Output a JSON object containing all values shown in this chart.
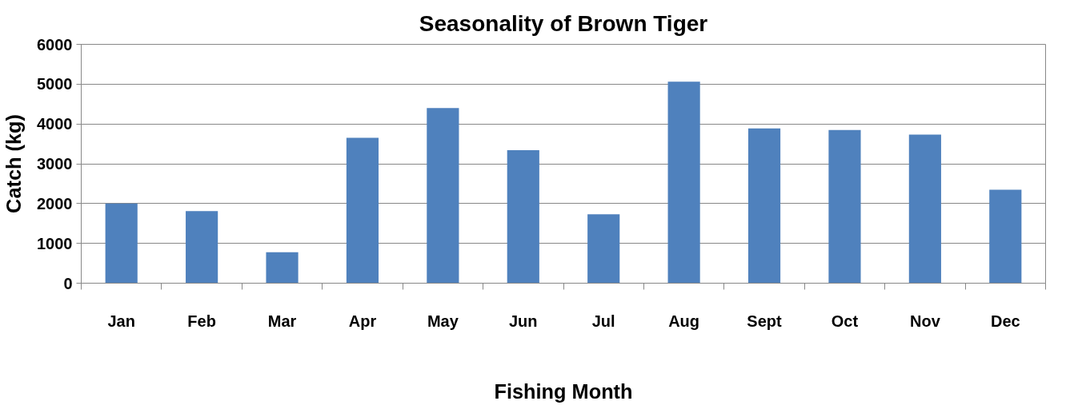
{
  "chart_data": {
    "type": "bar",
    "title": "Seasonality of Brown Tiger",
    "xlabel": "Fishing Month",
    "ylabel": "Catch (kg)",
    "categories": [
      "Jan",
      "Feb",
      "Mar",
      "Apr",
      "May",
      "Jun",
      "Jul",
      "Aug",
      "Sept",
      "Oct",
      "Nov",
      "Dec"
    ],
    "values": [
      2000,
      1810,
      780,
      3650,
      4400,
      3340,
      1730,
      5060,
      3890,
      3850,
      3730,
      2350
    ],
    "color": "#4f81bd",
    "ylim": [
      0,
      6000
    ],
    "yticks": [
      0,
      1000,
      2000,
      3000,
      4000,
      5000,
      6000
    ],
    "grid": "y"
  }
}
